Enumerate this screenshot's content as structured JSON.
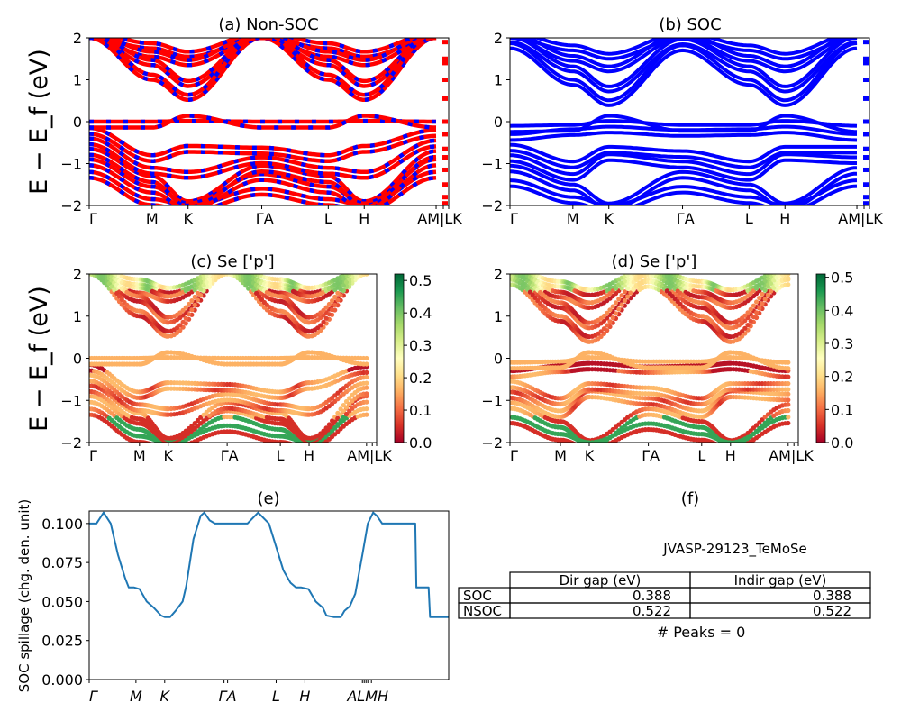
{
  "figure": {
    "band_ylabel": "E − E_f (eV)",
    "energy_ticks": [
      "2",
      "1",
      "0",
      "−1",
      "−2"
    ],
    "kpath_labels": [
      "Γ",
      "M",
      "K",
      "ΓA",
      "L",
      "H",
      "AM|LK"
    ],
    "kpath_labels_b": [
      "Γ",
      "M",
      "K",
      "ΓA",
      "L",
      "H",
      "AM|LK"
    ]
  },
  "chart_data": [
    {
      "id": "a",
      "type": "line",
      "title": "(a) Non-SOC",
      "xlabel": "",
      "ylabel": "E − E_f (eV)",
      "ylim": [
        -2,
        2
      ],
      "x_ticks": [
        "Γ",
        "M",
        "K",
        "ΓA",
        "L",
        "H",
        "AM|LK"
      ],
      "x_tick_positions": [
        0,
        0.175,
        0.275,
        0.48,
        0.665,
        0.765,
        0.965
      ],
      "series_colors": [
        "#ff0000",
        "#0000ff"
      ],
      "legend": "none",
      "bands": {
        "conduction": [
          [
            2.0,
            1.0,
            0.52,
            2.0,
            1.0,
            0.52,
            2.0
          ],
          [
            2.0,
            1.35,
            0.85,
            2.0,
            1.35,
            0.85,
            2.0
          ],
          [
            2.0,
            1.55,
            1.35,
            2.0,
            1.55,
            1.35,
            2.0
          ],
          [
            2.0,
            1.75,
            1.55,
            2.0,
            1.75,
            1.55,
            2.0
          ]
        ],
        "valence": [
          [
            0.0,
            0.0,
            0.02,
            0.0,
            0.0,
            0.02,
            0.0
          ],
          [
            -0.15,
            -0.8,
            -0.58,
            -0.62,
            -0.8,
            -0.58,
            -0.2
          ],
          [
            -0.4,
            -1.1,
            -1.2,
            -0.85,
            -1.1,
            -1.2,
            -0.45
          ],
          [
            -0.65,
            -1.3,
            -1.9,
            -1.05,
            -1.3,
            -1.9,
            -0.7
          ],
          [
            -0.9,
            -1.55,
            -1.95,
            -1.25,
            -1.55,
            -1.95,
            -0.9
          ],
          [
            -1.2,
            -1.85,
            -2.0,
            -1.6,
            -1.85,
            -2.0,
            -1.2
          ]
        ]
      }
    },
    {
      "id": "b",
      "type": "line",
      "title": "(b) SOC",
      "xlabel": "",
      "ylabel": "",
      "ylim": [
        -2,
        2
      ],
      "x_ticks": [
        "Γ",
        "M",
        "K",
        "ΓA",
        "L",
        "H",
        "AM|LK"
      ],
      "series_colors": [
        "#0000ff"
      ],
      "legend": "none",
      "bands": {
        "conduction": [
          [
            1.75,
            0.88,
            0.39,
            1.7,
            0.88,
            0.39,
            1.75
          ],
          [
            1.9,
            1.2,
            0.72,
            1.85,
            1.2,
            0.72,
            1.9
          ],
          [
            2.0,
            1.45,
            1.2,
            2.0,
            1.45,
            1.2,
            2.0
          ],
          [
            2.0,
            1.7,
            1.5,
            2.0,
            1.7,
            1.5,
            2.0
          ]
        ],
        "valence": [
          [
            -0.1,
            -0.08,
            0.02,
            -0.08,
            -0.08,
            0.02,
            -0.1
          ],
          [
            -0.3,
            -0.18,
            -0.12,
            -0.2,
            -0.18,
            -0.12,
            -0.3
          ],
          [
            -0.55,
            -0.95,
            -0.6,
            -0.7,
            -0.95,
            -0.6,
            -0.6
          ],
          [
            -0.8,
            -1.25,
            -0.78,
            -0.95,
            -1.25,
            -0.78,
            -0.85
          ],
          [
            -1.05,
            -1.5,
            -1.95,
            -1.2,
            -1.5,
            -1.95,
            -1.1
          ],
          [
            -1.4,
            -1.8,
            -2.0,
            -1.55,
            -1.8,
            -2.0,
            -1.4
          ]
        ]
      }
    },
    {
      "id": "c",
      "type": "scatter",
      "title": "(c)  Se ['p']",
      "ylabel": "E − E_f (eV)",
      "ylim": [
        -2,
        2
      ],
      "x_ticks": [
        "Γ",
        "M",
        "K",
        "ΓA",
        "L",
        "H",
        "AM|LK"
      ],
      "colorbar": {
        "cmap": "RdYlGn",
        "range": [
          0.0,
          0.52
        ],
        "ticks": [
          "0.0",
          "0.1",
          "0.2",
          "0.3",
          "0.4",
          "0.5"
        ]
      }
    },
    {
      "id": "d",
      "type": "scatter",
      "title": "(d) Se ['p']",
      "ylabel": "",
      "ylim": [
        -2,
        2
      ],
      "x_ticks": [
        "Γ",
        "M",
        "K",
        "ΓA",
        "L",
        "H",
        "AM|LK"
      ],
      "colorbar": {
        "cmap": "RdYlGn",
        "range": [
          0.0,
          0.51
        ],
        "ticks": [
          "0.0",
          "0.1",
          "0.2",
          "0.3",
          "0.4",
          "0.5"
        ]
      }
    },
    {
      "id": "e",
      "type": "line",
      "title": "(e)",
      "xlabel": "",
      "ylabel": "SOC spillage (chg. den. unit)",
      "ylim": [
        0.0,
        0.108
      ],
      "y_ticks": [
        "0.000",
        "0.025",
        "0.050",
        "0.075",
        "0.100"
      ],
      "x_ticks": [
        "Γ",
        "M",
        "K",
        "ΓA",
        "L",
        "H",
        "ALMH"
      ],
      "color": "#1f77b4",
      "x": [
        0,
        0.02,
        0.04,
        0.06,
        0.08,
        0.1,
        0.11,
        0.125,
        0.14,
        0.16,
        0.18,
        0.2,
        0.21,
        0.225,
        0.24,
        0.26,
        0.27,
        0.29,
        0.31,
        0.32,
        0.335,
        0.35,
        0.36,
        0.375,
        0.385,
        0.4,
        0.42,
        0.44,
        0.47,
        0.5,
        0.52,
        0.54,
        0.56,
        0.575,
        0.59,
        0.61,
        0.63,
        0.65,
        0.66,
        0.68,
        0.7,
        0.71,
        0.725,
        0.74,
        0.76,
        0.775,
        0.79,
        0.8,
        0.815,
        0.83,
        0.845,
        0.86,
        0.875,
        0.89,
        0.9,
        0.907,
        0.91,
        0.94,
        0.944,
        0.948,
        1.0
      ],
      "y": [
        0.1,
        0.1,
        0.107,
        0.1,
        0.08,
        0.065,
        0.059,
        0.059,
        0.058,
        0.05,
        0.046,
        0.041,
        0.04,
        0.04,
        0.044,
        0.05,
        0.06,
        0.09,
        0.105,
        0.107,
        0.102,
        0.1,
        0.1,
        0.1,
        0.1,
        0.1,
        0.1,
        0.1,
        0.107,
        0.1,
        0.085,
        0.07,
        0.062,
        0.059,
        0.059,
        0.058,
        0.05,
        0.046,
        0.041,
        0.04,
        0.04,
        0.044,
        0.047,
        0.055,
        0.08,
        0.1,
        0.107,
        0.105,
        0.1,
        0.1,
        0.1,
        0.1,
        0.1,
        0.1,
        0.1,
        0.1,
        0.059,
        0.059,
        0.059,
        0.04,
        0.04
      ]
    },
    {
      "id": "f",
      "type": "table",
      "title": "(f)",
      "caption": "JVASP-29123_TeMoSe",
      "columns": [
        "Dir gap (eV)",
        "Indir gap (eV)"
      ],
      "rows": [
        {
          "label": "SOC",
          "values": [
            "0.388",
            "0.388"
          ]
        },
        {
          "label": "NSOC",
          "values": [
            "0.522",
            "0.522"
          ]
        }
      ],
      "footer": "# Peaks = 0"
    }
  ]
}
